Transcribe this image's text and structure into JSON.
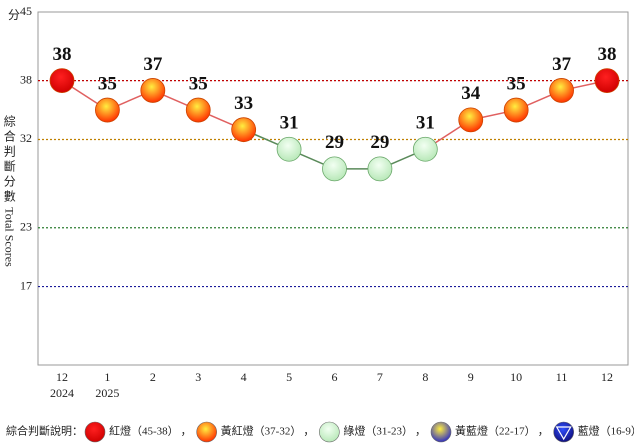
{
  "chart_data": {
    "type": "line",
    "y_unit_label": "分",
    "y_axis_label": "綜合判斷分數",
    "y_axis_label_en": "Total Scores",
    "categories": [
      "12",
      "1",
      "2",
      "3",
      "4",
      "5",
      "6",
      "7",
      "8",
      "9",
      "10",
      "11",
      "12"
    ],
    "category_sublabels": [
      "2024",
      "2025",
      null,
      null,
      null,
      null,
      null,
      null,
      null,
      null,
      null,
      null,
      null
    ],
    "values": [
      38,
      35,
      37,
      35,
      33,
      31,
      29,
      29,
      31,
      34,
      35,
      37,
      38
    ],
    "ylim": [
      9,
      45
    ],
    "yticks": [
      45,
      38,
      32,
      23,
      17
    ],
    "reference_lines": [
      {
        "value": 38,
        "color": "#c00000"
      },
      {
        "value": 32,
        "color": "#c08000"
      },
      {
        "value": 23,
        "color": "#2e7d32"
      },
      {
        "value": 17,
        "color": "#1a1a9a"
      }
    ],
    "legend_title": "綜合判斷說明：",
    "legend_separator": "，",
    "signals": [
      {
        "name": "紅燈",
        "range_label": "（45-38）",
        "min": 38,
        "max": 45,
        "inner": "#ff2020",
        "outer": "#d00000",
        "line_color": "#e06060"
      },
      {
        "name": "黃紅燈",
        "range_label": "（37-32）",
        "min": 32,
        "max": 37,
        "inner": "#ffee40",
        "outer": "#ff3000",
        "line_color": "#e06060"
      },
      {
        "name": "綠燈",
        "range_label": "（31-23）",
        "min": 23,
        "max": 31,
        "inner": "#f2fff2",
        "outer": "#b8e8b8",
        "line_color": "#5a8a5a"
      },
      {
        "name": "黃藍燈",
        "range_label": "（22-17）",
        "min": 17,
        "max": 22,
        "inner": "#ffee40",
        "outer": "#3030c0",
        "line_color": "#5a5a9a"
      },
      {
        "name": "藍燈",
        "range_label": "（16-9）",
        "min": 9,
        "max": 16,
        "inner": "#3050ff",
        "outer": "#101080",
        "line_color": "#5a5a9a"
      }
    ]
  }
}
